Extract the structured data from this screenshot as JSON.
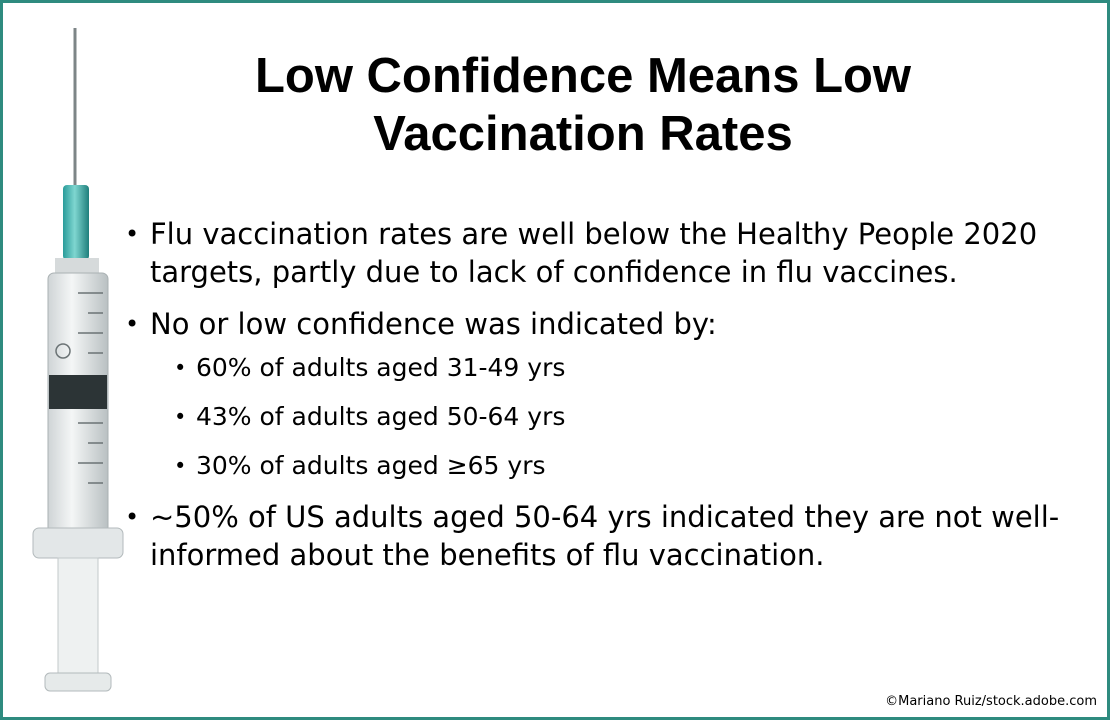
{
  "title": "Low Confidence Means Low Vaccination Rates",
  "bullets": [
    {
      "text": "Flu vaccination rates are well below the Healthy People 2020 targets, partly due to lack of confidence in flu vaccines."
    },
    {
      "text": "No or low confidence was indicated by:",
      "sub": [
        "60% of adults aged 31-49 yrs",
        "43% of adults aged 50-64 yrs",
        "30% of adults aged ≥65 yrs"
      ]
    },
    {
      "text": "~50% of US adults aged 50-64 yrs indicated they are not well-informed about the benefits of flu vaccination."
    }
  ],
  "credit": "©Mariano Ruiz/stock.adobe.com"
}
